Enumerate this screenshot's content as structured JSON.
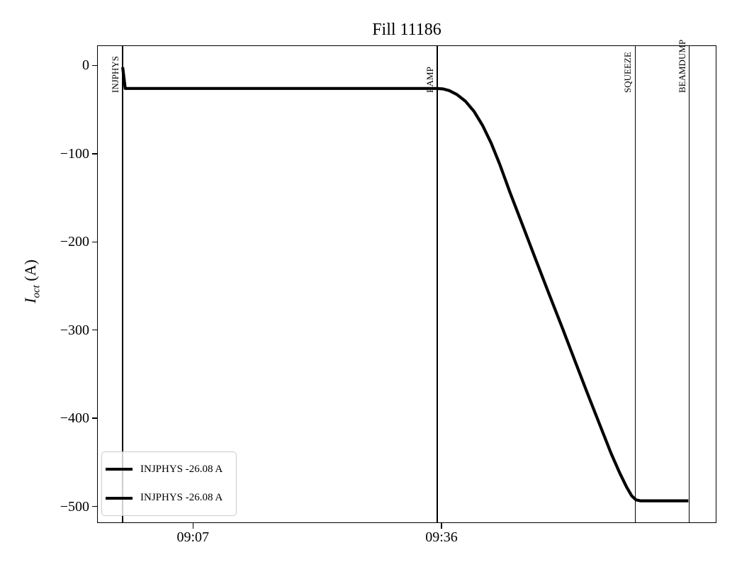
{
  "chart_data": {
    "type": "line",
    "title": "Fill 11186",
    "ylabel": {
      "main": "I",
      "sub": "oct",
      "unit": " (A)"
    },
    "xlabel": "",
    "grid": false,
    "x_axis": {
      "kind": "time-of-day",
      "range_minutes_after_0900": [
        -4.1,
        68.0
      ],
      "ticks": [
        {
          "t": 7,
          "label": "09:07"
        },
        {
          "t": 36,
          "label": "09:36"
        }
      ]
    },
    "y_axis": {
      "unit": "A",
      "range": [
        -518,
        22
      ],
      "ticks": [
        {
          "v": 0,
          "label": "0"
        },
        {
          "v": -100,
          "label": "−100"
        },
        {
          "v": -200,
          "label": "−200"
        },
        {
          "v": -300,
          "label": "−300"
        },
        {
          "v": -400,
          "label": "−400"
        },
        {
          "v": -500,
          "label": "−500"
        }
      ]
    },
    "events": [
      {
        "label": "INJPHYS",
        "t": -1.2
      },
      {
        "label": "RAMP",
        "t": 35.5
      },
      {
        "label": "SQUEEZE",
        "t": 58.6
      },
      {
        "label": "BEAMDUMP",
        "t": 64.9
      }
    ],
    "series": [
      {
        "name": "INJPHYS -26.08 A",
        "color": "#000000",
        "points": [
          [
            -1.2,
            -2
          ],
          [
            -1.05,
            -14
          ],
          [
            -0.9,
            -26.08
          ],
          [
            35.5,
            -26.08
          ],
          [
            36.2,
            -26.6
          ],
          [
            36.9,
            -28.5
          ],
          [
            37.8,
            -33
          ],
          [
            38.8,
            -40.5
          ],
          [
            39.8,
            -52
          ],
          [
            40.8,
            -68
          ],
          [
            41.8,
            -88
          ],
          [
            42.8,
            -112
          ],
          [
            44.0,
            -144
          ],
          [
            45.5,
            -182
          ],
          [
            47.0,
            -220
          ],
          [
            48.5,
            -258
          ],
          [
            50.0,
            -295
          ],
          [
            51.5,
            -333
          ],
          [
            53.0,
            -371
          ],
          [
            54.5,
            -408
          ],
          [
            55.8,
            -440
          ],
          [
            56.8,
            -462
          ],
          [
            57.6,
            -478
          ],
          [
            58.2,
            -488
          ],
          [
            58.7,
            -492.5
          ],
          [
            59.2,
            -493.6
          ],
          [
            64.8,
            -493.6
          ]
        ]
      }
    ],
    "legend": {
      "position": "lower left",
      "entries": [
        "INJPHYS -26.08 A",
        "INJPHYS -26.08 A"
      ]
    }
  }
}
